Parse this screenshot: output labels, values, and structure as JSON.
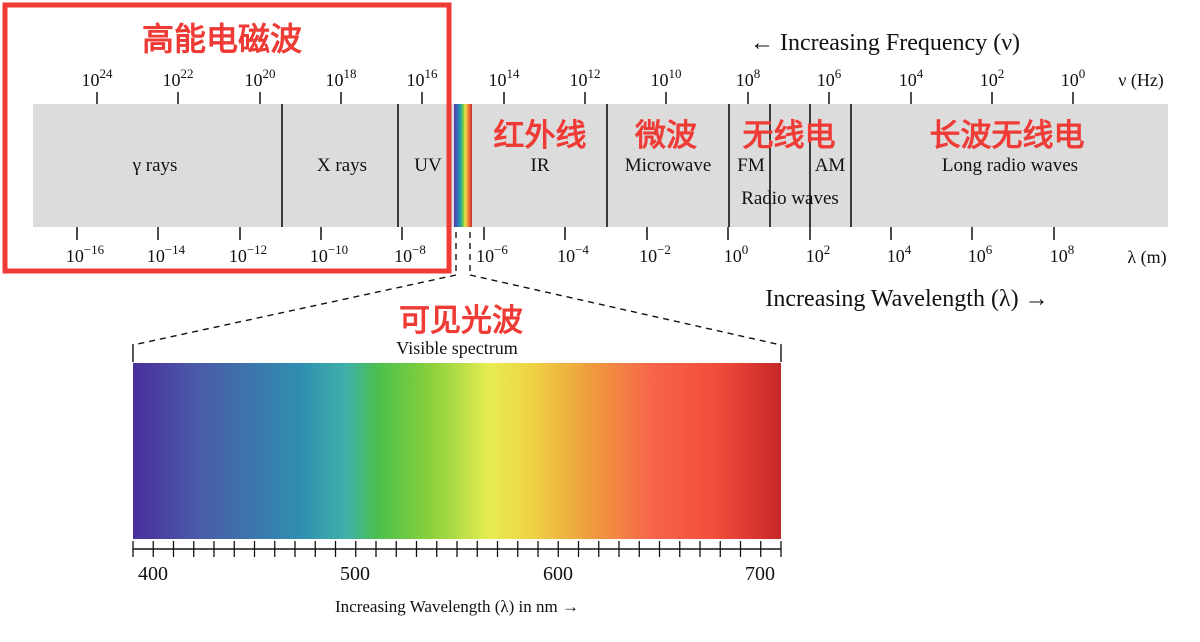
{
  "frequency_axis": {
    "title": "← Increasing Frequency (ν)",
    "unit": "ν (Hz)",
    "ticks": [
      {
        "base": "10",
        "exp": "24"
      },
      {
        "base": "10",
        "exp": "22"
      },
      {
        "base": "10",
        "exp": "20"
      },
      {
        "base": "10",
        "exp": "18"
      },
      {
        "base": "10",
        "exp": "16"
      },
      {
        "base": "10",
        "exp": "14"
      },
      {
        "base": "10",
        "exp": "12"
      },
      {
        "base": "10",
        "exp": "10"
      },
      {
        "base": "10",
        "exp": "8"
      },
      {
        "base": "10",
        "exp": "6"
      },
      {
        "base": "10",
        "exp": "4"
      },
      {
        "base": "10",
        "exp": "2"
      },
      {
        "base": "10",
        "exp": "0"
      }
    ]
  },
  "wavelength_axis": {
    "title": "Increasing Wavelength (λ) →",
    "unit": "λ (m)",
    "ticks": [
      {
        "base": "10",
        "exp": "−16"
      },
      {
        "base": "10",
        "exp": "−14"
      },
      {
        "base": "10",
        "exp": "−12"
      },
      {
        "base": "10",
        "exp": "−10"
      },
      {
        "base": "10",
        "exp": "−8"
      },
      {
        "base": "10",
        "exp": "−6"
      },
      {
        "base": "10",
        "exp": "−4"
      },
      {
        "base": "10",
        "exp": "−2"
      },
      {
        "base": "10",
        "exp": "0"
      },
      {
        "base": "10",
        "exp": "2"
      },
      {
        "base": "10",
        "exp": "4"
      },
      {
        "base": "10",
        "exp": "6"
      },
      {
        "base": "10",
        "exp": "8"
      }
    ]
  },
  "bands": {
    "gamma": "γ rays",
    "xray": "X rays",
    "uv": "UV",
    "ir": "IR",
    "microwave": "Microwave",
    "fm": "FM",
    "am": "AM",
    "radio": "Radio waves",
    "long_radio": "Long radio waves"
  },
  "annotations": {
    "high_energy": "高能电磁波",
    "infrared": "红外线",
    "microwave": "微波",
    "radio": "无线电",
    "long_radio": "长波无线电",
    "visible": "可见光波"
  },
  "visible_spectrum": {
    "title": "Visible spectrum",
    "axis_title": "Increasing Wavelength (λ) in nm →",
    "tick_labels": [
      "400",
      "500",
      "600",
      "700"
    ]
  },
  "colors": {
    "band_fill": "#dcdcdc",
    "annotation_red": "#ef3b36",
    "highlight_box": "#ef3b36"
  }
}
